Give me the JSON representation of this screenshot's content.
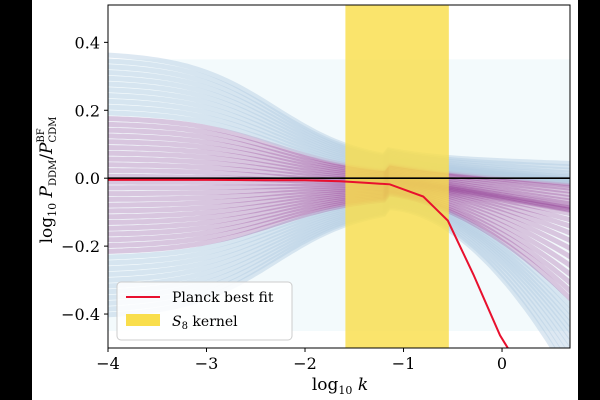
{
  "chart_data": {
    "type": "line",
    "title": "",
    "xlabel": {
      "base": "log",
      "sub": "10",
      "var": "k"
    },
    "ylabel": {
      "base": "log",
      "sub": "10",
      "p": "P",
      "num_sub": "DDM",
      "slash": "/",
      "den_sub": "CDM",
      "den_sup": "BF"
    },
    "xlim": [
      -4,
      0.69
    ],
    "ylim": [
      -0.5,
      0.51
    ],
    "xticks": [
      -4,
      -3,
      -2,
      -1,
      0
    ],
    "xtick_labels": [
      "−4",
      "−3",
      "−2",
      "−1",
      "0"
    ],
    "yticks": [
      0.4,
      0.2,
      0.0,
      -0.2,
      -0.4
    ],
    "ytick_labels": [
      "0.4",
      "0.2",
      "0.0",
      "−0.2",
      "−0.4"
    ],
    "grid": false,
    "legend_placement": "lower-left",
    "reference_line_y": 0,
    "series": [
      {
        "name": "Planck best fit",
        "color": "#e8102e",
        "x": [
          -4,
          -3,
          -2,
          -1.64,
          -1.14,
          -0.8,
          -0.55,
          -0.29,
          -0.02,
          0.08
        ],
        "y": [
          -0.005,
          -0.005,
          -0.006,
          -0.009,
          -0.018,
          -0.054,
          -0.125,
          -0.284,
          -0.463,
          -0.51
        ]
      }
    ],
    "shaded_regions": [
      {
        "name": "S_8 kernel",
        "label_main": "S",
        "label_sub": "8",
        "label_rest": " kernel",
        "x": [
          -1.59,
          -0.54
        ],
        "color": "#f9de4c"
      }
    ],
    "posterior_band": {
      "x_range": [
        -4,
        0.69
      ],
      "y_range": [
        -0.45,
        0.35
      ],
      "colors": {
        "low": "#b4cbe2",
        "high": "#7b0f79",
        "background": "#f3fafc"
      }
    }
  }
}
